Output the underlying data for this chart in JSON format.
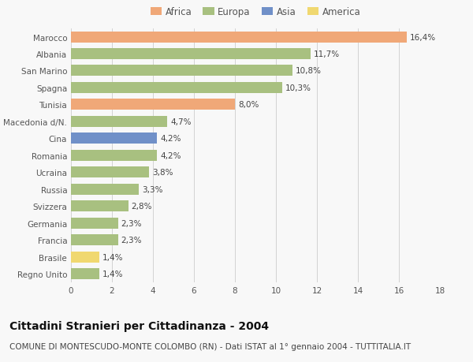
{
  "categories": [
    "Marocco",
    "Albania",
    "San Marino",
    "Spagna",
    "Tunisia",
    "Macedonia d/N.",
    "Cina",
    "Romania",
    "Ucraina",
    "Russia",
    "Svizzera",
    "Germania",
    "Francia",
    "Brasile",
    "Regno Unito"
  ],
  "values": [
    16.4,
    11.7,
    10.8,
    10.3,
    8.0,
    4.7,
    4.2,
    4.2,
    3.8,
    3.3,
    2.8,
    2.3,
    2.3,
    1.4,
    1.4
  ],
  "labels": [
    "16,4%",
    "11,7%",
    "10,8%",
    "10,3%",
    "8,0%",
    "4,7%",
    "4,2%",
    "4,2%",
    "3,8%",
    "3,3%",
    "2,8%",
    "2,3%",
    "2,3%",
    "1,4%",
    "1,4%"
  ],
  "colors": [
    "#f0a878",
    "#a8c080",
    "#a8c080",
    "#a8c080",
    "#f0a878",
    "#a8c080",
    "#7090c8",
    "#a8c080",
    "#a8c080",
    "#a8c080",
    "#a8c080",
    "#a8c080",
    "#a8c080",
    "#f0d870",
    "#a8c080"
  ],
  "continent_colors": {
    "Africa": "#f0a878",
    "Europa": "#a8c080",
    "Asia": "#7090c8",
    "America": "#f0d870"
  },
  "legend_labels": [
    "Africa",
    "Europa",
    "Asia",
    "America"
  ],
  "xlim": [
    0,
    18
  ],
  "xticks": [
    0,
    2,
    4,
    6,
    8,
    10,
    12,
    14,
    16,
    18
  ],
  "title": "Cittadini Stranieri per Cittadinanza - 2004",
  "subtitle": "COMUNE DI MONTESCUDO-MONTE COLOMBO (RN) - Dati ISTAT al 1° gennaio 2004 - TUTTITALIA.IT",
  "bg_color": "#f8f8f8",
  "bar_height": 0.65,
  "title_fontsize": 10,
  "subtitle_fontsize": 7.5,
  "label_fontsize": 7.5,
  "tick_fontsize": 7.5,
  "legend_fontsize": 8.5
}
